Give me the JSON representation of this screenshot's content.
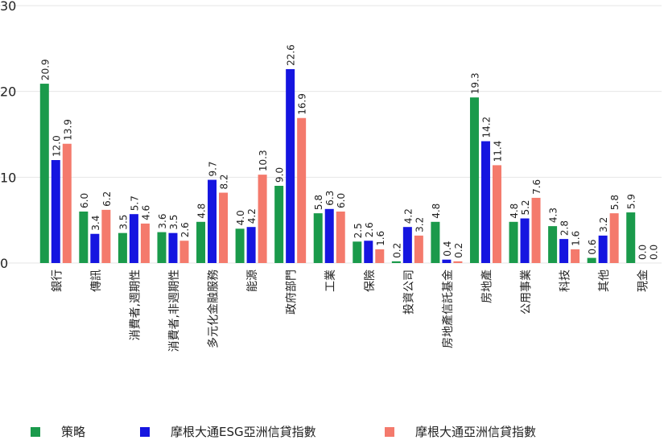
{
  "chart_data": {
    "type": "bar",
    "categories": [
      "銀行",
      "傳訊",
      "消費者,週期性",
      "消費者,非週期性",
      "多元化金融服務",
      "能源",
      "政府部門",
      "工業",
      "保險",
      "投資公司",
      "房地產信託基金",
      "房地產",
      "公用事業",
      "科技",
      "其他",
      "現金"
    ],
    "series": [
      {
        "name": "策略",
        "color": "#1a9a4b",
        "values": [
          20.9,
          6.0,
          3.5,
          3.6,
          4.8,
          4.0,
          9.0,
          5.8,
          2.5,
          0.2,
          4.8,
          19.3,
          4.8,
          4.3,
          0.6,
          5.9
        ]
      },
      {
        "name": "摩根大通ESG亞洲信貸指數",
        "color": "#1515e0",
        "values": [
          12.0,
          3.4,
          5.7,
          3.5,
          9.7,
          4.2,
          22.6,
          6.3,
          2.6,
          4.2,
          0.4,
          14.2,
          5.2,
          2.8,
          3.2,
          0.0
        ]
      },
      {
        "name": "摩根大通亞洲信貸指數",
        "color": "#f47a6c",
        "values": [
          13.9,
          6.2,
          4.6,
          2.6,
          8.2,
          10.3,
          16.9,
          6.0,
          1.6,
          3.2,
          0.2,
          11.4,
          7.6,
          1.6,
          5.8,
          0.0
        ]
      }
    ],
    "yticks": [
      "0",
      "10",
      "20",
      "30"
    ],
    "ylim": [
      0,
      30
    ],
    "legend_position": "bottom",
    "grid": true
  }
}
